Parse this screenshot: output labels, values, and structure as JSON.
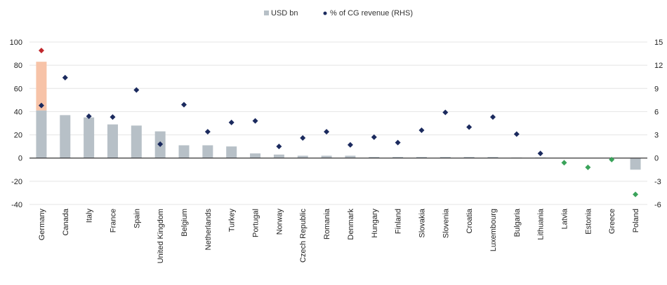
{
  "chart_data": {
    "type": "bar",
    "legend": {
      "placement": "top-center",
      "bar_label": "USD bn",
      "dot_label": "% of CG revenue (RHS)"
    },
    "categories": [
      "Germany",
      "Canada",
      "Italy",
      "France",
      "Spain",
      "United Kingdom",
      "Belgium",
      "Netherlands",
      "Turkey",
      "Portugal",
      "Norway",
      "Czech Republic",
      "Romania",
      "Denmark",
      "Hungary",
      "Finland",
      "Slovakia",
      "Slovenia",
      "Croatia",
      "Luxembourg",
      "Bulgaria",
      "Lithuania",
      "Latvia",
      "Estonia",
      "Greece",
      "Poland"
    ],
    "series": [
      {
        "name": "USD bn",
        "type": "bar",
        "axis": "left",
        "values": [
          41,
          37,
          35,
          29,
          28,
          23,
          11,
          11,
          10,
          4,
          3,
          2,
          2,
          2,
          1,
          1,
          1,
          1,
          1,
          1,
          0.5,
          0.5,
          0,
          0,
          0,
          -10
        ]
      },
      {
        "name": "% of CG revenue (RHS)",
        "type": "scatter",
        "axis": "right",
        "values": [
          6.8,
          10.4,
          5.4,
          5.3,
          8.8,
          1.8,
          6.9,
          3.4,
          4.6,
          4.8,
          1.5,
          2.6,
          3.4,
          1.7,
          2.7,
          2.0,
          3.6,
          5.9,
          4.0,
          5.3,
          3.1,
          0.6,
          -0.6,
          -1.2,
          -0.2,
          -4.7
        ]
      }
    ],
    "highlight": {
      "category": "Germany",
      "bar_extension_to": 83,
      "dot_value": 13.9
    },
    "ylim_left": [
      -40,
      100
    ],
    "ylim_right": [
      -6,
      15
    ],
    "yticks_left": [
      "100",
      "80",
      "60",
      "40",
      "20",
      "0",
      "-20",
      "-40"
    ],
    "yticks_right": [
      "15",
      "12",
      "9",
      "6",
      "3",
      "0",
      "-3",
      "-6"
    ],
    "grid": true,
    "colors": {
      "bar": "#b7c0c7",
      "bar_highlight": "#f7c3a8",
      "dot": "#1b2a5e",
      "dot_highlight": "#c0282d",
      "dot_negative": "#3aa35a",
      "grid": "#e4e4e4",
      "zero_line": "#333333"
    }
  }
}
